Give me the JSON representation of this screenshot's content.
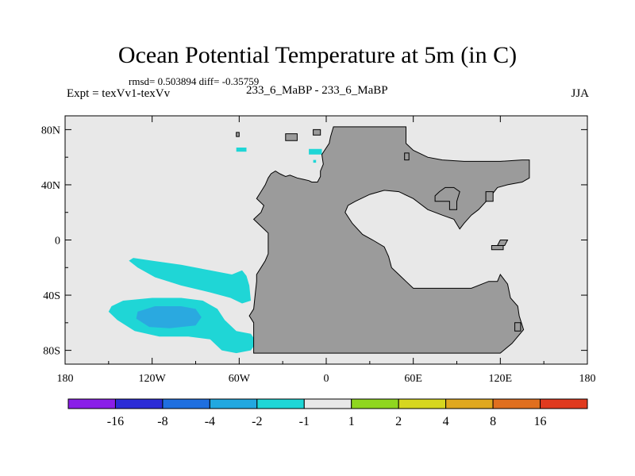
{
  "header": {
    "title": "Ocean Potential Temperature at 5m (in C)",
    "stats": "rmsd= 0.503894 diff= -0.35759",
    "left_label": "Expt = texVv1-texVv",
    "center_label": "233_6_MaBP - 233_6_MaBP",
    "right_label": "JJA"
  },
  "colors": {
    "ocean": "#e8e8e8",
    "land": "#9b9b9b",
    "contour_neg1": "#1fd6d6",
    "contour_neg2": "#2aa9e0"
  },
  "chart_data": {
    "type": "heatmap",
    "title": "Ocean Potential Temperature at 5m (in C)",
    "x_range": [
      -180,
      180
    ],
    "y_range": [
      -90,
      90
    ],
    "x_ticks": [
      {
        "value": -180,
        "label": "180"
      },
      {
        "value": -120,
        "label": "120W"
      },
      {
        "value": -60,
        "label": "60W"
      },
      {
        "value": 0,
        "label": "0"
      },
      {
        "value": 60,
        "label": "60E"
      },
      {
        "value": 120,
        "label": "120E"
      },
      {
        "value": 180,
        "label": "180"
      }
    ],
    "y_ticks": [
      {
        "value": 80,
        "label": "80N"
      },
      {
        "value": 40,
        "label": "40N"
      },
      {
        "value": 0,
        "label": "0"
      },
      {
        "value": -40,
        "label": "40S"
      },
      {
        "value": -80,
        "label": "80S"
      }
    ],
    "colorbar": {
      "colors": [
        "#8a1ee8",
        "#2b2bd6",
        "#1f6fe0",
        "#22a8e0",
        "#1fd6d6",
        "#e8e8e8",
        "#8fd61f",
        "#d6d61f",
        "#e0a81f",
        "#e06f1f",
        "#e03a1f"
      ],
      "labels": [
        "-16",
        "-8",
        "-4",
        "-2",
        "-1",
        "1",
        "2",
        "4",
        "8",
        "16"
      ]
    },
    "land": [
      [
        -50,
        -75
      ],
      [
        -50,
        -60
      ],
      [
        -53,
        -55
      ],
      [
        -50,
        -50
      ],
      [
        -49,
        -40
      ],
      [
        -48,
        -30
      ],
      [
        -48,
        -25
      ],
      [
        -45,
        -20
      ],
      [
        -42,
        -15
      ],
      [
        -40,
        -10
      ],
      [
        -40,
        0
      ],
      [
        -40,
        5
      ],
      [
        -45,
        10
      ],
      [
        -50,
        15
      ],
      [
        -45,
        20
      ],
      [
        -43,
        25
      ],
      [
        -48,
        30
      ],
      [
        -45,
        35
      ],
      [
        -42,
        40
      ],
      [
        -40,
        45
      ],
      [
        -38,
        48
      ],
      [
        -35,
        50
      ],
      [
        -32,
        48
      ],
      [
        -28,
        46
      ],
      [
        -25,
        47
      ],
      [
        -20,
        45
      ],
      [
        -16,
        44
      ],
      [
        -12,
        43
      ],
      [
        -10,
        42
      ],
      [
        -6,
        42
      ],
      [
        -4,
        46
      ],
      [
        -4,
        50
      ],
      [
        -2,
        55
      ],
      [
        -3,
        62
      ],
      [
        2,
        70
      ],
      [
        3,
        75
      ],
      [
        5,
        82
      ],
      [
        20,
        82
      ],
      [
        40,
        82
      ],
      [
        55,
        82
      ],
      [
        55,
        70
      ],
      [
        60,
        65
      ],
      [
        70,
        60
      ],
      [
        80,
        58
      ],
      [
        95,
        57
      ],
      [
        110,
        57
      ],
      [
        120,
        57
      ],
      [
        135,
        58
      ],
      [
        140,
        58
      ],
      [
        140,
        45
      ],
      [
        135,
        42
      ],
      [
        125,
        40
      ],
      [
        118,
        38
      ],
      [
        112,
        30
      ],
      [
        105,
        22
      ],
      [
        100,
        18
      ],
      [
        95,
        12
      ],
      [
        92,
        8
      ],
      [
        88,
        15
      ],
      [
        80,
        18
      ],
      [
        70,
        22
      ],
      [
        60,
        30
      ],
      [
        50,
        35
      ],
      [
        40,
        36
      ],
      [
        30,
        33
      ],
      [
        20,
        28
      ],
      [
        15,
        25
      ],
      [
        13,
        20
      ],
      [
        18,
        12
      ],
      [
        25,
        4
      ],
      [
        32,
        0
      ],
      [
        40,
        -5
      ],
      [
        43,
        -12
      ],
      [
        45,
        -20
      ],
      [
        50,
        -25
      ],
      [
        55,
        -30
      ],
      [
        60,
        -35
      ],
      [
        75,
        -35
      ],
      [
        100,
        -35
      ],
      [
        112,
        -30
      ],
      [
        118,
        -30
      ],
      [
        120,
        -25
      ],
      [
        125,
        -32
      ],
      [
        127,
        -42
      ],
      [
        132,
        -48
      ],
      [
        133,
        -55
      ],
      [
        136,
        -65
      ],
      [
        128,
        -75
      ],
      [
        120,
        -82
      ],
      [
        60,
        -82
      ],
      [
        0,
        -82
      ],
      [
        -50,
        -82
      ]
    ],
    "islands": [
      [
        [
          -9,
          80
        ],
        [
          -9,
          76
        ],
        [
          -4,
          76
        ],
        [
          -4,
          80
        ]
      ],
      [
        [
          -62,
          78
        ],
        [
          -62,
          75
        ],
        [
          -60,
          75
        ],
        [
          -60,
          78
        ]
      ],
      [
        [
          -28,
          77
        ],
        [
          -28,
          72
        ],
        [
          -20,
          72
        ],
        [
          -20,
          77
        ]
      ],
      [
        [
          54,
          63
        ],
        [
          54,
          58
        ],
        [
          57,
          58
        ],
        [
          57,
          63
        ]
      ],
      [
        [
          75,
          32
        ],
        [
          75,
          28
        ],
        [
          85,
          28
        ],
        [
          85,
          22
        ],
        [
          90,
          22
        ],
        [
          90,
          28
        ],
        [
          92,
          35
        ],
        [
          88,
          38
        ],
        [
          82,
          38
        ],
        [
          78,
          35
        ]
      ],
      [
        [
          110,
          35
        ],
        [
          110,
          28
        ],
        [
          115,
          28
        ],
        [
          115,
          35
        ]
      ],
      [
        [
          114,
          -4
        ],
        [
          114,
          -7
        ],
        [
          122,
          -7
        ],
        [
          122,
          -4
        ]
      ],
      [
        [
          130,
          -60
        ],
        [
          130,
          -66
        ],
        [
          134,
          -66
        ],
        [
          134,
          -60
        ]
      ],
      [
        [
          120,
          0
        ],
        [
          118,
          -4
        ],
        [
          123,
          -4
        ],
        [
          125,
          0
        ]
      ]
    ],
    "contours": [
      {
        "level": -1,
        "polygon": [
          [
            -133,
            -13
          ],
          [
            -120,
            -15
          ],
          [
            -100,
            -18
          ],
          [
            -80,
            -22
          ],
          [
            -65,
            -25
          ],
          [
            -58,
            -22
          ],
          [
            -55,
            -26
          ],
          [
            -53,
            -33
          ],
          [
            -52,
            -44
          ],
          [
            -58,
            -46
          ],
          [
            -66,
            -42
          ],
          [
            -80,
            -38
          ],
          [
            -100,
            -33
          ],
          [
            -118,
            -27
          ],
          [
            -130,
            -20
          ],
          [
            -136,
            -15
          ]
        ]
      },
      {
        "level": -1,
        "polygon": [
          [
            -148,
            -48
          ],
          [
            -140,
            -44
          ],
          [
            -120,
            -42
          ],
          [
            -100,
            -42
          ],
          [
            -85,
            -44
          ],
          [
            -75,
            -50
          ],
          [
            -70,
            -58
          ],
          [
            -62,
            -66
          ],
          [
            -52,
            -68
          ],
          [
            -48,
            -74
          ],
          [
            -52,
            -80
          ],
          [
            -62,
            -82
          ],
          [
            -72,
            -80
          ],
          [
            -80,
            -72
          ],
          [
            -95,
            -70
          ],
          [
            -115,
            -70
          ],
          [
            -132,
            -66
          ],
          [
            -144,
            -58
          ],
          [
            -150,
            -52
          ]
        ]
      },
      {
        "level": -2,
        "polygon": [
          [
            -130,
            -52
          ],
          [
            -118,
            -48
          ],
          [
            -100,
            -48
          ],
          [
            -90,
            -50
          ],
          [
            -86,
            -56
          ],
          [
            -90,
            -62
          ],
          [
            -108,
            -64
          ],
          [
            -122,
            -63
          ],
          [
            -131,
            -57
          ]
        ]
      },
      {
        "level": -1,
        "polygon": [
          [
            -62,
            67
          ],
          [
            -55,
            67
          ],
          [
            -55,
            64
          ],
          [
            -62,
            64
          ]
        ]
      },
      {
        "level": -1,
        "polygon": [
          [
            -12,
            66
          ],
          [
            -3,
            66
          ],
          [
            -3,
            62
          ],
          [
            -12,
            62
          ]
        ]
      },
      {
        "level": -1,
        "polygon": [
          [
            -9,
            58
          ],
          [
            -7,
            58
          ],
          [
            -7,
            56
          ],
          [
            -9,
            56
          ]
        ]
      }
    ]
  }
}
